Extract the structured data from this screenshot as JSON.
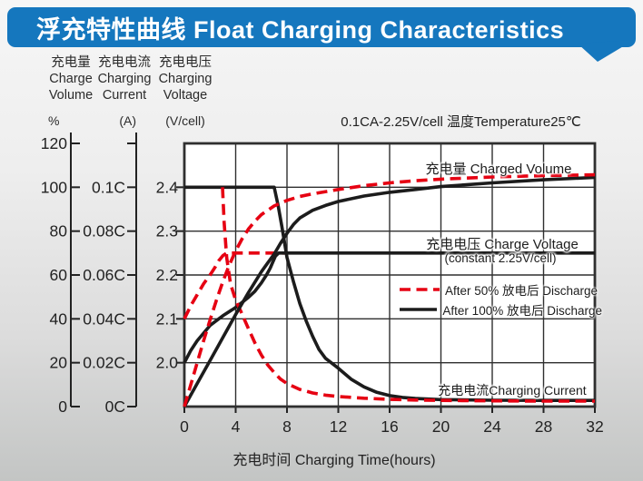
{
  "header": {
    "title": "浮充特性曲线 Float Charging Characteristics",
    "bg_color": "#1577be",
    "text_color": "#ffffff"
  },
  "condition_note": "0.1CA-2.25V/cell  温度Temperature25℃",
  "axes": {
    "volume": {
      "title_cn": "充电量",
      "title_en1": "Charge",
      "title_en2": "Volume",
      "unit": "%",
      "ticks": [
        "120",
        "100",
        "80",
        "60",
        "40",
        "20",
        "0"
      ]
    },
    "current": {
      "title_cn": "充电电流",
      "title_en1": "Charging",
      "title_en2": "Current",
      "unit": "(A)",
      "ticks": [
        "",
        "0.1C",
        "0.08C",
        "0.06C",
        "0.04C",
        "0.02C",
        "0C"
      ]
    },
    "voltage": {
      "title_cn": "充电电压",
      "title_en1": "Charging",
      "title_en2": "Voltage",
      "unit": "(V/cell)",
      "ticks": [
        "",
        "2.4",
        "2.3",
        "2.2",
        "2.1",
        "2.0",
        ""
      ]
    },
    "x": {
      "title": "充电时间 Charging Time(hours)",
      "ticks": [
        "0",
        "4",
        "8",
        "12",
        "16",
        "20",
        "24",
        "28",
        "32"
      ]
    }
  },
  "plot_labels": {
    "charged_volume": "充电量 Charged Volume",
    "charge_voltage": "充电电压 Charge Voltage",
    "charge_voltage_sub": "(constant 2.25V/cell)",
    "charging_current": "充电电流Charging Current"
  },
  "legend": [
    {
      "label": "After 50%  放电后 Discharge",
      "style": "dashed",
      "color": "#e60012"
    },
    {
      "label": "After 100%  放电后 Discharge",
      "style": "solid",
      "color": "#1c1c1c"
    }
  ],
  "colors": {
    "grid": "#2f2f2f",
    "curve_black": "#1c1c1c",
    "curve_red": "#e60012",
    "tick_text": "#222222"
  },
  "chart_data": {
    "type": "line",
    "title": "浮充特性曲线 Float Charging Characteristics",
    "xlabel": "充电时间 Charging Time(hours)",
    "x_range": [
      0,
      32
    ],
    "x_tick_step": 4,
    "grid": true,
    "legend_position": "right-middle",
    "axis_ranges": {
      "percent": {
        "min": 0,
        "max": 120
      },
      "voltage": {
        "min": 1.9,
        "max": 2.5
      },
      "current": {
        "min": 0,
        "max": 0.12
      }
    },
    "series": [
      {
        "name": "charge-voltage-after-50pct-discharge",
        "axis": "voltage",
        "style": "dashed",
        "color": "#e60012",
        "points": [
          [
            0,
            2.1
          ],
          [
            0.5,
            2.13
          ],
          [
            1,
            2.155
          ],
          [
            1.5,
            2.18
          ],
          [
            2,
            2.2
          ],
          [
            2.4,
            2.218
          ],
          [
            2.7,
            2.233
          ],
          [
            3,
            2.244
          ],
          [
            3.3,
            2.25
          ],
          [
            8,
            2.25
          ]
        ]
      },
      {
        "name": "charge-voltage-after-100pct-discharge",
        "axis": "voltage",
        "style": "solid",
        "color": "#1c1c1c",
        "points": [
          [
            0,
            2.0
          ],
          [
            0.5,
            2.028
          ],
          [
            1,
            2.05
          ],
          [
            2,
            2.085
          ],
          [
            3,
            2.107
          ],
          [
            4,
            2.126
          ],
          [
            5,
            2.149
          ],
          [
            5.5,
            2.163
          ],
          [
            6,
            2.182
          ],
          [
            6.4,
            2.2
          ],
          [
            6.7,
            2.216
          ],
          [
            6.9,
            2.23
          ],
          [
            7.1,
            2.243
          ],
          [
            7.35,
            2.25
          ],
          [
            32,
            2.25
          ]
        ]
      },
      {
        "name": "charging-current-after-100pct-discharge",
        "axis": "current",
        "style": "solid",
        "color": "#1c1c1c",
        "points": [
          [
            0,
            0.1
          ],
          [
            7.0,
            0.1
          ],
          [
            7.3,
            0.092
          ],
          [
            7.6,
            0.082
          ],
          [
            8,
            0.068
          ],
          [
            8.5,
            0.057
          ],
          [
            9,
            0.047
          ],
          [
            9.5,
            0.039
          ],
          [
            10,
            0.032
          ],
          [
            10.5,
            0.026
          ],
          [
            11,
            0.022
          ],
          [
            12,
            0.0175
          ],
          [
            13,
            0.0125
          ],
          [
            14,
            0.009
          ],
          [
            15,
            0.0065
          ],
          [
            16,
            0.005
          ],
          [
            17,
            0.0042
          ],
          [
            18,
            0.0037
          ],
          [
            20,
            0.0032
          ],
          [
            24,
            0.0029
          ],
          [
            28,
            0.0028
          ],
          [
            32,
            0.0028
          ]
        ]
      },
      {
        "name": "charging-current-after-50pct-discharge",
        "axis": "current",
        "style": "dashed",
        "color": "#e60012",
        "points": [
          [
            2.97,
            0.1
          ],
          [
            3.1,
            0.084
          ],
          [
            3.3,
            0.068
          ],
          [
            3.6,
            0.056
          ],
          [
            4,
            0.0485
          ],
          [
            4.4,
            0.0435
          ],
          [
            5,
            0.0355
          ],
          [
            5.5,
            0.029
          ],
          [
            6,
            0.0235
          ],
          [
            6.5,
            0.019
          ],
          [
            7,
            0.0155
          ],
          [
            7.5,
            0.0125
          ],
          [
            8,
            0.0105
          ],
          [
            9,
            0.0078
          ],
          [
            10,
            0.0062
          ],
          [
            11,
            0.0052
          ],
          [
            12,
            0.0046
          ],
          [
            14,
            0.0038
          ],
          [
            16,
            0.0033
          ],
          [
            18,
            0.003
          ],
          [
            20,
            0.0028
          ],
          [
            24,
            0.0026
          ],
          [
            28,
            0.0025
          ],
          [
            32,
            0.0025
          ]
        ]
      },
      {
        "name": "charged-volume-after-100pct-discharge",
        "axis": "percent",
        "style": "solid",
        "color": "#1c1c1c",
        "points": [
          [
            0,
            0
          ],
          [
            1,
            10.5
          ],
          [
            2,
            21
          ],
          [
            3,
            31.5
          ],
          [
            4,
            42
          ],
          [
            5,
            52
          ],
          [
            6,
            61.5
          ],
          [
            6.5,
            65.5
          ],
          [
            7,
            69.5
          ],
          [
            7.5,
            74.5
          ],
          [
            8,
            79
          ],
          [
            8.5,
            83
          ],
          [
            9,
            86
          ],
          [
            10,
            89.5
          ],
          [
            11,
            91.7
          ],
          [
            12,
            93.5
          ],
          [
            14,
            96
          ],
          [
            16,
            97.7
          ],
          [
            18,
            99
          ],
          [
            20,
            100.3
          ],
          [
            24,
            102
          ],
          [
            28,
            103.4
          ],
          [
            32,
            104.5
          ]
        ]
      },
      {
        "name": "charged-volume-after-50pct-discharge",
        "axis": "percent",
        "style": "dashed",
        "color": "#e60012",
        "points": [
          [
            0,
            0
          ],
          [
            0.5,
            10
          ],
          [
            1,
            20
          ],
          [
            1.5,
            30
          ],
          [
            2,
            39.5
          ],
          [
            2.5,
            48.5
          ],
          [
            3,
            57
          ],
          [
            3.5,
            64.5
          ],
          [
            4,
            71
          ],
          [
            4.5,
            76.5
          ],
          [
            5,
            81
          ],
          [
            5.5,
            84.5
          ],
          [
            6,
            87.5
          ],
          [
            7,
            91.5
          ],
          [
            8,
            94
          ],
          [
            9,
            95.8
          ],
          [
            10,
            97
          ],
          [
            12,
            99
          ],
          [
            14,
            100.7
          ],
          [
            16,
            102
          ],
          [
            18,
            103
          ],
          [
            20,
            103.7
          ],
          [
            24,
            104.7
          ],
          [
            28,
            105.3
          ],
          [
            32,
            105.7
          ]
        ]
      }
    ]
  }
}
